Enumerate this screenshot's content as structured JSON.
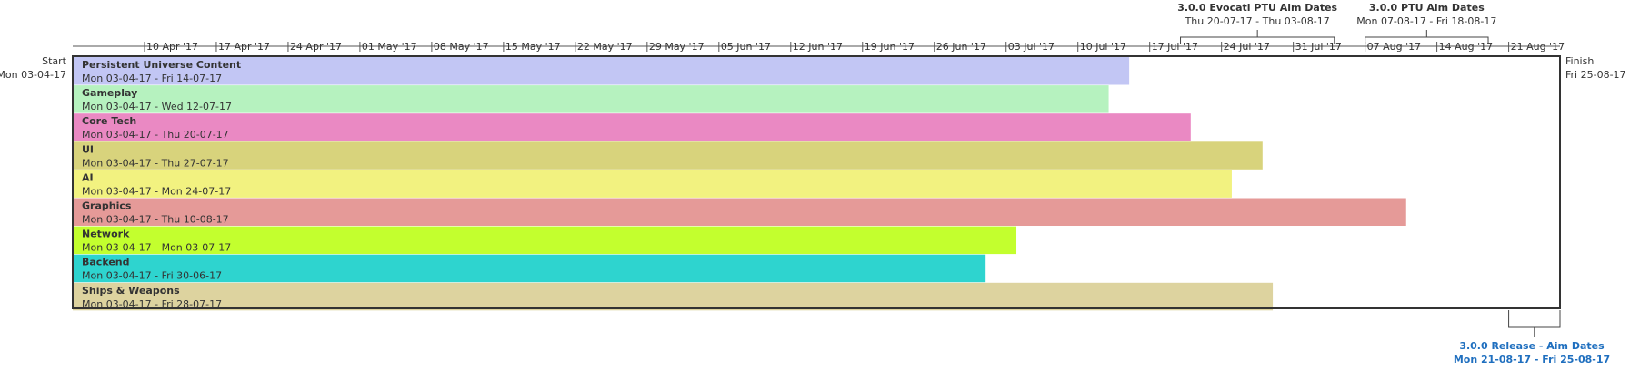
{
  "chart_data": {
    "type": "bar",
    "timeline": {
      "start_label": "Start",
      "start_date_label": "Mon 03-04-17",
      "finish_label": "Finish",
      "finish_date_label": "Fri 25-08-17",
      "start": "2017-04-03",
      "finish": "2017-08-25"
    },
    "ticks": [
      {
        "date": "2017-04-10",
        "label": "10 Apr '17"
      },
      {
        "date": "2017-04-17",
        "label": "17 Apr '17"
      },
      {
        "date": "2017-04-24",
        "label": "24 Apr '17"
      },
      {
        "date": "2017-05-01",
        "label": "01 May '17"
      },
      {
        "date": "2017-05-08",
        "label": "08 May '17"
      },
      {
        "date": "2017-05-15",
        "label": "15 May '17"
      },
      {
        "date": "2017-05-22",
        "label": "22 May '17"
      },
      {
        "date": "2017-05-29",
        "label": "29 May '17"
      },
      {
        "date": "2017-06-05",
        "label": "05 Jun '17"
      },
      {
        "date": "2017-06-12",
        "label": "12 Jun '17"
      },
      {
        "date": "2017-06-19",
        "label": "19 Jun '17"
      },
      {
        "date": "2017-06-26",
        "label": "26 Jun '17"
      },
      {
        "date": "2017-07-03",
        "label": "03 Jul '17"
      },
      {
        "date": "2017-07-10",
        "label": "10 Jul '17"
      },
      {
        "date": "2017-07-17",
        "label": "17 Jul '17"
      },
      {
        "date": "2017-07-24",
        "label": "24 Jul '17"
      },
      {
        "date": "2017-07-31",
        "label": "31 Jul '17"
      },
      {
        "date": "2017-08-07",
        "label": "07 Aug '17"
      },
      {
        "date": "2017-08-14",
        "label": "14 Aug '17"
      },
      {
        "date": "2017-08-21",
        "label": "21 Aug '17"
      }
    ],
    "tasks": [
      {
        "name": "Persistent Universe Content",
        "dates": "Mon 03-04-17 - Fri 14-07-17",
        "start": "2017-04-03",
        "end": "2017-07-14",
        "color": "#c2c6f4"
      },
      {
        "name": "Gameplay",
        "dates": "Mon 03-04-17 - Wed 12-07-17",
        "start": "2017-04-03",
        "end": "2017-07-12",
        "color": "#b6f2bf"
      },
      {
        "name": "Core Tech",
        "dates": "Mon 03-04-17 - Thu 20-07-17",
        "start": "2017-04-03",
        "end": "2017-07-20",
        "color": "#ea89c3"
      },
      {
        "name": "UI",
        "dates": "Mon 03-04-17 - Thu 27-07-17",
        "start": "2017-04-03",
        "end": "2017-07-27",
        "color": "#d8d37c"
      },
      {
        "name": "AI",
        "dates": "Mon 03-04-17 - Mon 24-07-17",
        "start": "2017-04-03",
        "end": "2017-07-24",
        "color": "#f2f280"
      },
      {
        "name": "Graphics",
        "dates": "Mon 03-04-17 - Thu 10-08-17",
        "start": "2017-04-03",
        "end": "2017-08-10",
        "color": "#e59a98"
      },
      {
        "name": "Network",
        "dates": "Mon 03-04-17 - Mon 03-07-17",
        "start": "2017-04-03",
        "end": "2017-07-03",
        "color": "#c3ff2e"
      },
      {
        "name": "Backend",
        "dates": "Mon 03-04-17 - Fri 30-06-17",
        "start": "2017-04-03",
        "end": "2017-06-30",
        "color": "#2ed4cf"
      },
      {
        "name": "Ships & Weapons",
        "dates": "Mon 03-04-17 - Fri 28-07-17",
        "start": "2017-04-03",
        "end": "2017-07-28",
        "color": "#ddd39f"
      }
    ],
    "annotations": [
      {
        "title": "3.0.0 Evocati PTU Aim Dates",
        "range": "Thu 20-07-17 - Thu 03-08-17",
        "start": "2017-07-20",
        "end": "2017-08-03",
        "position": "above",
        "color": "#333333"
      },
      {
        "title": "3.0.0 PTU Aim Dates",
        "range": "Mon 07-08-17 - Fri 18-08-17",
        "start": "2017-08-07",
        "end": "2017-08-18",
        "position": "above",
        "color": "#333333"
      },
      {
        "title": "3.0.0 Release - Aim Dates",
        "range": "Mon 21-08-17 - Fri 25-08-17",
        "start": "2017-08-21",
        "end": "2017-08-25",
        "position": "below",
        "color": "#1f6fbf"
      }
    ]
  }
}
